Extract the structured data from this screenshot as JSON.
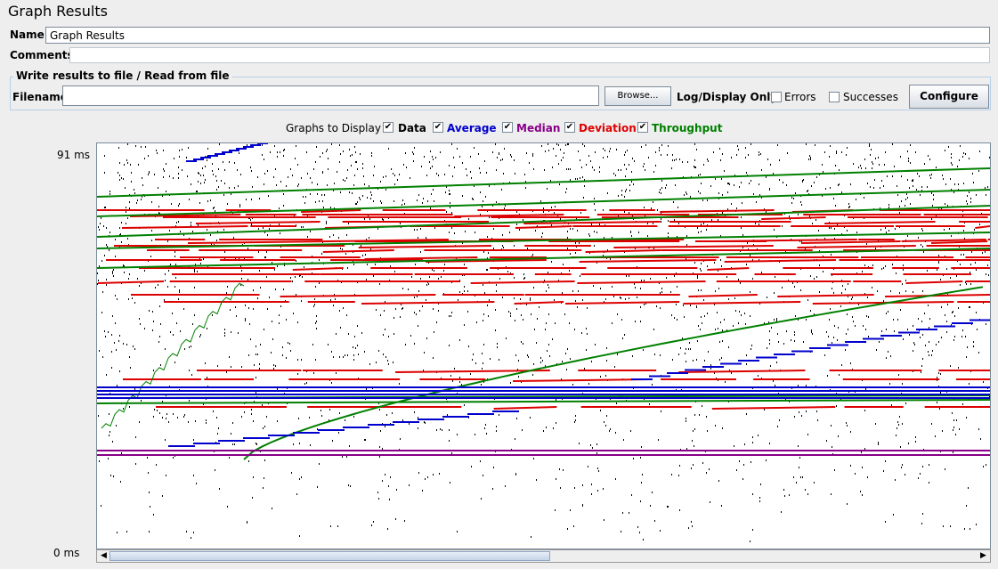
{
  "window": {
    "title": "Graph Results"
  },
  "form": {
    "name_label": "Name:",
    "name_value": "Graph Results",
    "comments_label": "Comments:",
    "file_group_title": "Write results to file / Read from file",
    "filename_label": "Filename",
    "filename_value": "",
    "browse_label": "Browse...",
    "log_display_label": "Log/Display Only:",
    "errors_label": "Errors",
    "errors_checked": false,
    "successes_label": "Successes",
    "successes_checked": false,
    "configure_label": "Configure"
  },
  "graphs_to_display": {
    "label": "Graphs to Display",
    "options": [
      {
        "label": "Data",
        "checked": true,
        "color": "#000000"
      },
      {
        "label": "Average",
        "checked": true,
        "color": "#0000cc"
      },
      {
        "label": "Median",
        "checked": true,
        "color": "#880088"
      },
      {
        "label": "Deviation",
        "checked": true,
        "color": "#dd0000"
      },
      {
        "label": "Throughput",
        "checked": true,
        "color": "#008000"
      }
    ]
  },
  "chart_data": {
    "type": "scatter",
    "y_max_label": "91  ms",
    "y_min_label": "0  ms",
    "ylim": [
      0,
      91
    ],
    "series": [
      {
        "name": "Data",
        "color": "#000000"
      },
      {
        "name": "Average",
        "color": "#0000cc"
      },
      {
        "name": "Median",
        "color": "#880088"
      },
      {
        "name": "Deviation",
        "color": "#dd0000"
      },
      {
        "name": "Throughput",
        "color": "#008000"
      }
    ]
  },
  "colors": {
    "background": "#eeeeee",
    "graph_background": "#ffffff",
    "border": "#7a8a99"
  }
}
